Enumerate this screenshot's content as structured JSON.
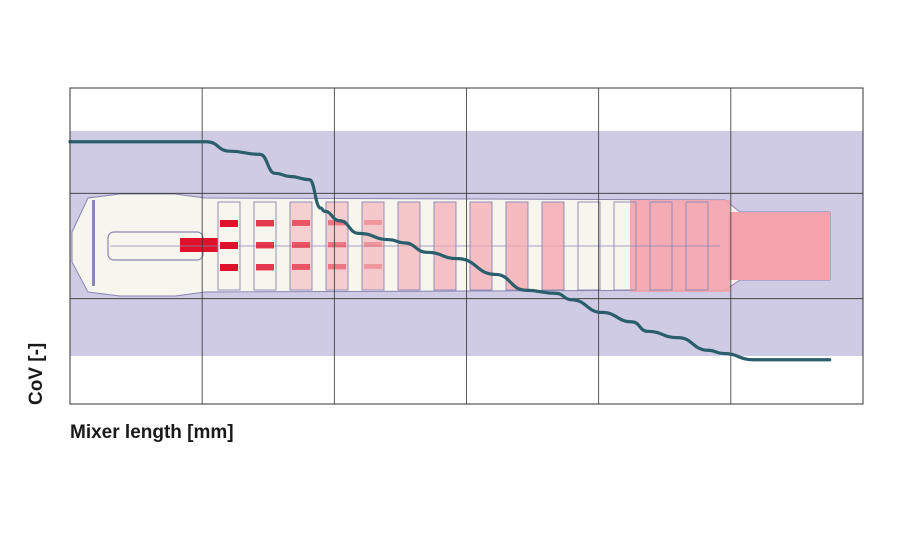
{
  "chart_data": {
    "type": "line",
    "title": "",
    "xlabel": "Mixer length [mm]",
    "ylabel": "CoV [-]",
    "grid": true,
    "x_ticks_shown": false,
    "y_ticks_shown": false,
    "background_image": "static-mixer-cross-section",
    "series": [
      {
        "color": "#2a5e6b",
        "x": [
          0.0,
          0.18,
          0.21,
          0.25,
          0.27,
          0.29,
          0.315,
          0.33,
          0.335,
          0.355,
          0.38,
          0.42,
          0.44,
          0.47,
          0.51,
          0.56,
          0.6,
          0.64,
          0.66,
          0.7,
          0.74,
          0.76,
          0.8,
          0.84,
          0.86,
          0.9,
          0.92,
          1.0
        ],
        "y": [
          0.83,
          0.83,
          0.8,
          0.79,
          0.73,
          0.72,
          0.71,
          0.62,
          0.61,
          0.58,
          0.54,
          0.52,
          0.51,
          0.48,
          0.46,
          0.41,
          0.36,
          0.35,
          0.33,
          0.29,
          0.26,
          0.23,
          0.21,
          0.17,
          0.16,
          0.14,
          0.14,
          0.14
        ]
      }
    ]
  },
  "colors": {
    "line": "#2a5e6b",
    "band": "#cfcbe4",
    "grid": "#333333",
    "mixer_outline": "#8a86b3",
    "dye_light": "#f4a3ad",
    "dye_strong": "#e0112a"
  }
}
